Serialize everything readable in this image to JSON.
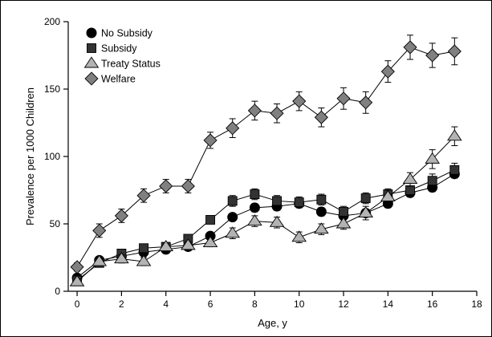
{
  "chart_data": {
    "type": "line",
    "title": "",
    "xlabel": "Age, y",
    "ylabel": "Prevalence per 1000 Children",
    "xlim": [
      -0.4,
      18
    ],
    "ylim": [
      0,
      200
    ],
    "xticks": [
      0,
      2,
      4,
      6,
      8,
      10,
      12,
      14,
      16,
      18
    ],
    "yticks": [
      0,
      50,
      100,
      150,
      200
    ],
    "grid": false,
    "legend_position": "top-left",
    "series": [
      {
        "name": "No Subsidy",
        "marker": "circle",
        "color": "#000000",
        "x": [
          0,
          1,
          2,
          3,
          4,
          5,
          6,
          7,
          8,
          9,
          10,
          11,
          12,
          13,
          14,
          15,
          16,
          17
        ],
        "y": [
          10,
          23,
          26,
          29,
          31,
          33,
          41,
          55,
          62,
          63,
          65,
          59,
          56,
          58,
          65,
          73,
          77,
          87
        ],
        "err": [
          2,
          2,
          2,
          2,
          2,
          2,
          2,
          2,
          3,
          3,
          3,
          3,
          3,
          3,
          3,
          3,
          3,
          3
        ]
      },
      {
        "name": "Subsidy",
        "marker": "square",
        "color": "#333333",
        "x": [
          0,
          1,
          2,
          3,
          4,
          5,
          6,
          7,
          8,
          9,
          10,
          11,
          12,
          13,
          14,
          15,
          16,
          17
        ],
        "y": [
          8,
          21,
          28,
          32,
          33,
          39,
          53,
          67,
          72,
          67,
          66,
          68,
          59,
          69,
          72,
          75,
          82,
          90
        ],
        "err": [
          2,
          2,
          2,
          2,
          2,
          2,
          3,
          4,
          4,
          4,
          4,
          4,
          4,
          4,
          4,
          5,
          5,
          5
        ]
      },
      {
        "name": "Treaty Status",
        "marker": "triangle",
        "color": "#b3b3b3",
        "x": [
          0,
          1,
          2,
          3,
          4,
          5,
          6,
          7,
          8,
          9,
          10,
          11,
          12,
          13,
          14,
          15,
          16,
          17
        ],
        "y": [
          7,
          22,
          24,
          22,
          33,
          34,
          36,
          43,
          52,
          51,
          40,
          46,
          50,
          58,
          70,
          83,
          98,
          115
        ],
        "err": [
          2,
          2,
          3,
          3,
          3,
          3,
          3,
          4,
          4,
          4,
          4,
          4,
          4,
          5,
          5,
          5,
          7,
          7
        ]
      },
      {
        "name": "Welfare",
        "marker": "diamond",
        "color": "#808080",
        "x": [
          0,
          1,
          2,
          3,
          4,
          5,
          6,
          7,
          8,
          9,
          10,
          11,
          12,
          13,
          14,
          15,
          16,
          17
        ],
        "y": [
          18,
          45,
          56,
          71,
          78,
          78,
          112,
          121,
          134,
          132,
          141,
          129,
          143,
          140,
          163,
          181,
          175,
          178
        ],
        "err": [
          3,
          5,
          5,
          5,
          5,
          5,
          6,
          7,
          7,
          7,
          7,
          7,
          8,
          8,
          8,
          9,
          9,
          10
        ]
      }
    ]
  }
}
